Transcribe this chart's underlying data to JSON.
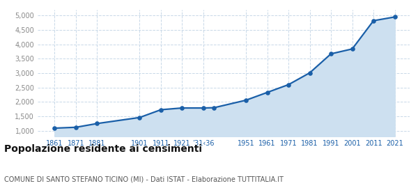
{
  "years": [
    1861,
    1871,
    1881,
    1901,
    1911,
    1921,
    1931,
    1936,
    1951,
    1961,
    1971,
    1981,
    1991,
    2001,
    2011,
    2021
  ],
  "population": [
    1090,
    1120,
    1250,
    1460,
    1730,
    1790,
    1790,
    1800,
    2060,
    2330,
    2600,
    3010,
    3670,
    3840,
    4820,
    4950
  ],
  "line_color": "#1a5fa8",
  "fill_color": "#cde0f0",
  "marker_color": "#1a5fa8",
  "grid_color": "#c8d8e8",
  "background_color": "#ffffff",
  "title": "Popolazione residente ai censimenti",
  "subtitle": "COMUNE DI SANTO STEFANO TICINO (MI) - Dati ISTAT - Elaborazione TUTTITALIA.IT",
  "title_fontsize": 10,
  "subtitle_fontsize": 7,
  "ylim": [
    800,
    5200
  ],
  "yticks": [
    1000,
    1500,
    2000,
    2500,
    3000,
    3500,
    4000,
    4500,
    5000
  ],
  "xtick_positions": [
    1861,
    1871,
    1881,
    1901,
    1911,
    1921,
    1931,
    1951,
    1961,
    1971,
    1981,
    1991,
    2001,
    2011,
    2021
  ],
  "xtick_labels": [
    "1861",
    "1871",
    "1881",
    "1901",
    "1911",
    "1921",
    "’31‹36",
    "1951",
    "1961",
    "1971",
    "1981",
    "1991",
    "2001",
    "2011",
    "2021"
  ],
  "xlim": [
    1853,
    2028
  ]
}
